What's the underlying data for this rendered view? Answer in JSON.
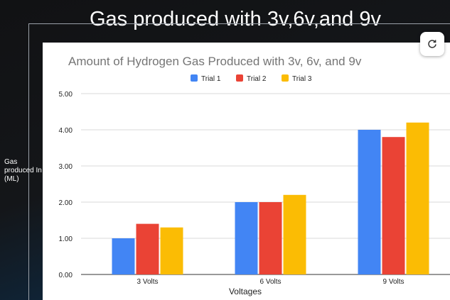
{
  "slide": {
    "title": "Gas produced with 3v,6v,and 9v",
    "side_label_lines": [
      "Gas",
      "produced In",
      "(ML)"
    ]
  },
  "icons": {
    "refresh": "refresh-icon"
  },
  "colors": {
    "series": [
      "#4285f4",
      "#ea4335",
      "#fbbc04"
    ]
  },
  "chart_data": {
    "type": "bar",
    "title": "Amount of Hydrogen Gas Produced with 3v, 6v, and 9v",
    "xlabel": "Voltages",
    "ylabel": "",
    "categories": [
      "3 Volts",
      "6 Volts",
      "9 Volts"
    ],
    "series": [
      {
        "name": "Trial 1",
        "values": [
          1.0,
          2.0,
          4.0
        ]
      },
      {
        "name": "Trial 2",
        "values": [
          1.4,
          2.0,
          3.8
        ]
      },
      {
        "name": "Trial 3",
        "values": [
          1.3,
          2.2,
          4.2
        ]
      }
    ],
    "ylim": [
      0,
      5
    ],
    "yticks": [
      "0.00",
      "1.00",
      "2.00",
      "3.00",
      "4.00",
      "5.00"
    ],
    "grid": true,
    "legend": "top-center"
  }
}
